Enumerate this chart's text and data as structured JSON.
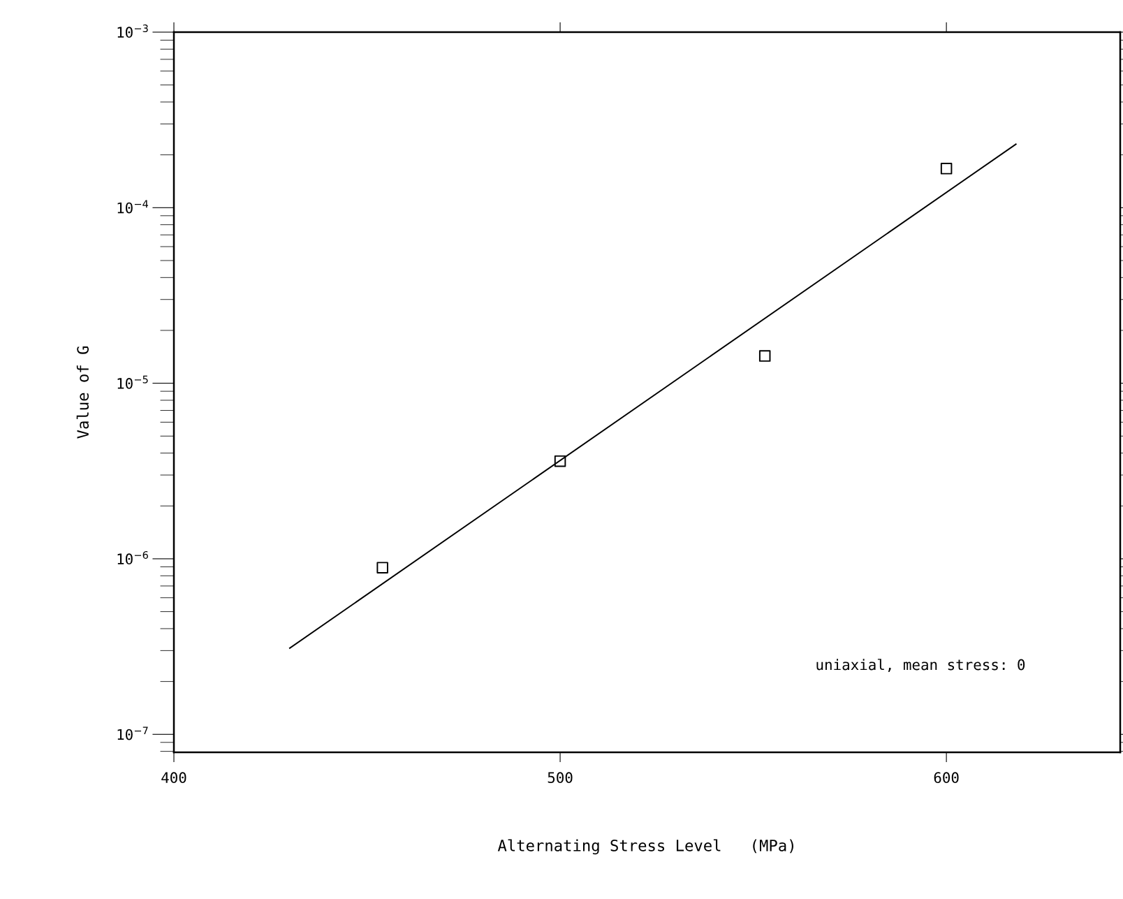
{
  "chart_data": {
    "type": "scatter",
    "xlabel": "Alternating Stress Level   (MPa)",
    "ylabel": "Value of G",
    "log": "y",
    "grid": false,
    "legend": false,
    "marker": "square",
    "xlim": [
      400,
      645
    ],
    "xticks": [
      400,
      500,
      600
    ],
    "ylim": [
      7.9e-08,
      0.001
    ],
    "yticks": [
      {
        "value": 1e-07,
        "label": "10$^{−7}$"
      },
      {
        "value": 1e-06,
        "label": "10$^{−6}$"
      },
      {
        "value": 1e-05,
        "label": "10$^{−5}$"
      },
      {
        "value": 0.0001,
        "label": "10$^{−4}$"
      },
      {
        "value": 0.001,
        "label": "10$^{−3}$"
      }
    ],
    "series": [
      {
        "type": "scatter",
        "color": "#000000",
        "x": [
          454,
          500,
          553,
          600
        ],
        "values": [
          8.9e-07,
          3.6e-06,
          1.43e-05,
          0.000167
        ]
      },
      {
        "type": "line",
        "color": "#000000",
        "marker": "none",
        "line_style": "solid",
        "x": [
          430,
          618
        ],
        "values": [
          3.1e-07,
          0.00023
        ]
      }
    ],
    "annotations": [
      "uniaxial, mean stress: 0"
    ]
  }
}
